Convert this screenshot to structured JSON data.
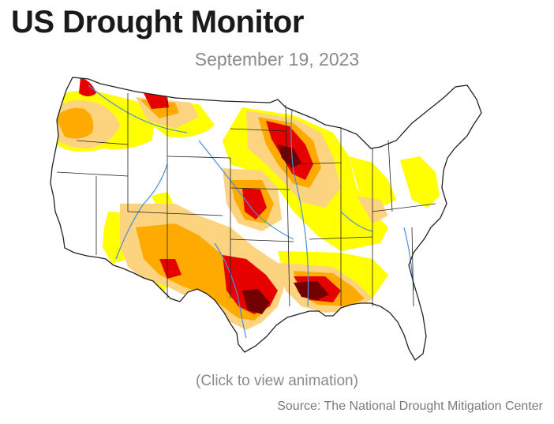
{
  "header": {
    "title": "US Drought Monitor",
    "date": "September 19, 2023"
  },
  "map": {
    "region": "Contiguous United States",
    "colors": {
      "land": "#ffffff",
      "border": "#222222",
      "rivers": "#4a90d9",
      "D0_abnormally_dry": "#ffff00",
      "D1_moderate": "#fcd37f",
      "D2_severe": "#ffaa00",
      "D3_extreme": "#e60000",
      "D4_exceptional": "#730000"
    }
  },
  "footer": {
    "animation_link": "(Click to view animation)",
    "source": "Source: The National Drought Mitigation Center"
  }
}
